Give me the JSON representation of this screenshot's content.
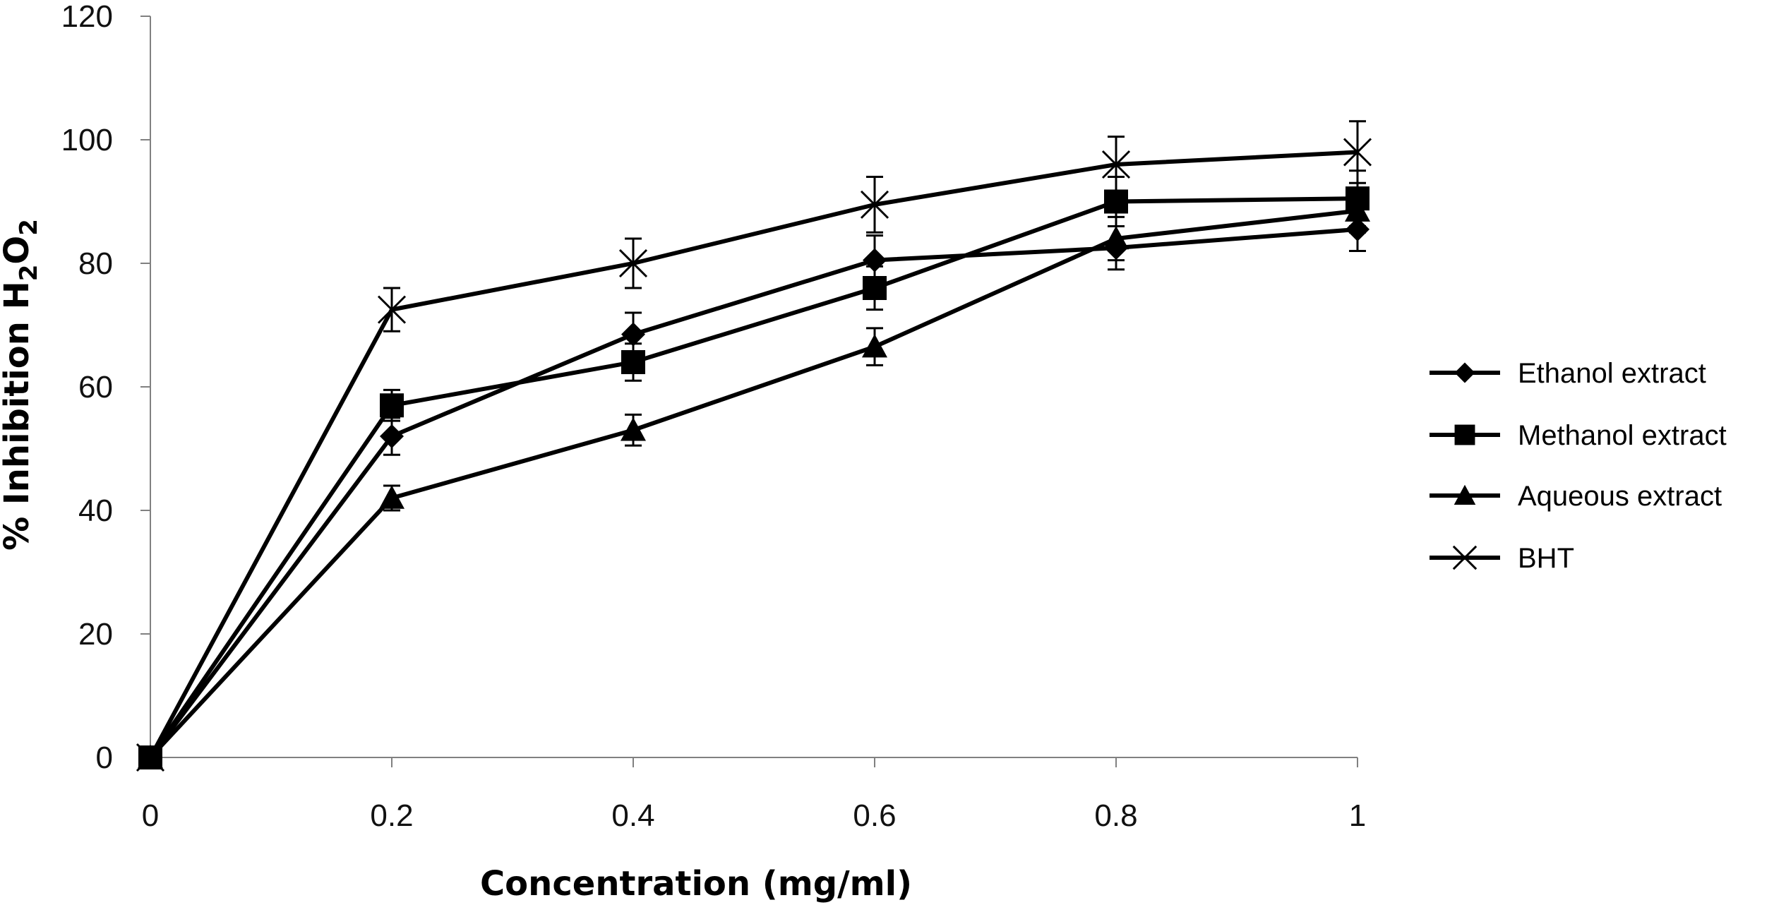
{
  "chart_data": {
    "type": "line",
    "title": "",
    "xlabel": "Concentration (mg/ml)",
    "ylabel": {
      "main": "% Inhibition H",
      "sub1": "2",
      "mid": "O",
      "sub2": "2"
    },
    "x": [
      0,
      0.2,
      0.4,
      0.6,
      0.8,
      1
    ],
    "x_tick_labels": [
      "0",
      "0.2",
      "0.4",
      "0.6",
      "0.8",
      "1"
    ],
    "y_ticks": [
      0,
      20,
      40,
      60,
      80,
      100,
      120
    ],
    "y_tick_labels": [
      "0",
      "20",
      "40",
      "60",
      "80",
      "100",
      "120"
    ],
    "xlim": [
      0,
      1
    ],
    "ylim": [
      0,
      120
    ],
    "grid": false,
    "legend_position": "right",
    "series": [
      {
        "name": "Ethanol extract",
        "marker": "diamond",
        "values": [
          0,
          52,
          68.5,
          80.5,
          82.5,
          85.5
        ],
        "errors": [
          0,
          3,
          3.5,
          4,
          3.5,
          3.5
        ]
      },
      {
        "name": "Methanol extract",
        "marker": "square",
        "values": [
          0,
          57,
          64,
          76,
          90,
          90.5
        ],
        "errors": [
          0,
          2.5,
          3,
          3.5,
          4,
          4.5
        ]
      },
      {
        "name": "Aqueous extract",
        "marker": "triangle",
        "values": [
          0,
          42,
          53,
          66.5,
          84,
          88.5
        ],
        "errors": [
          0,
          2,
          2.5,
          3,
          3.5,
          3.5
        ]
      },
      {
        "name": "BHT",
        "marker": "x",
        "values": [
          0,
          72.5,
          80,
          89.5,
          96,
          98
        ],
        "errors": [
          0,
          3.5,
          4,
          4.5,
          4.5,
          5
        ]
      }
    ]
  }
}
